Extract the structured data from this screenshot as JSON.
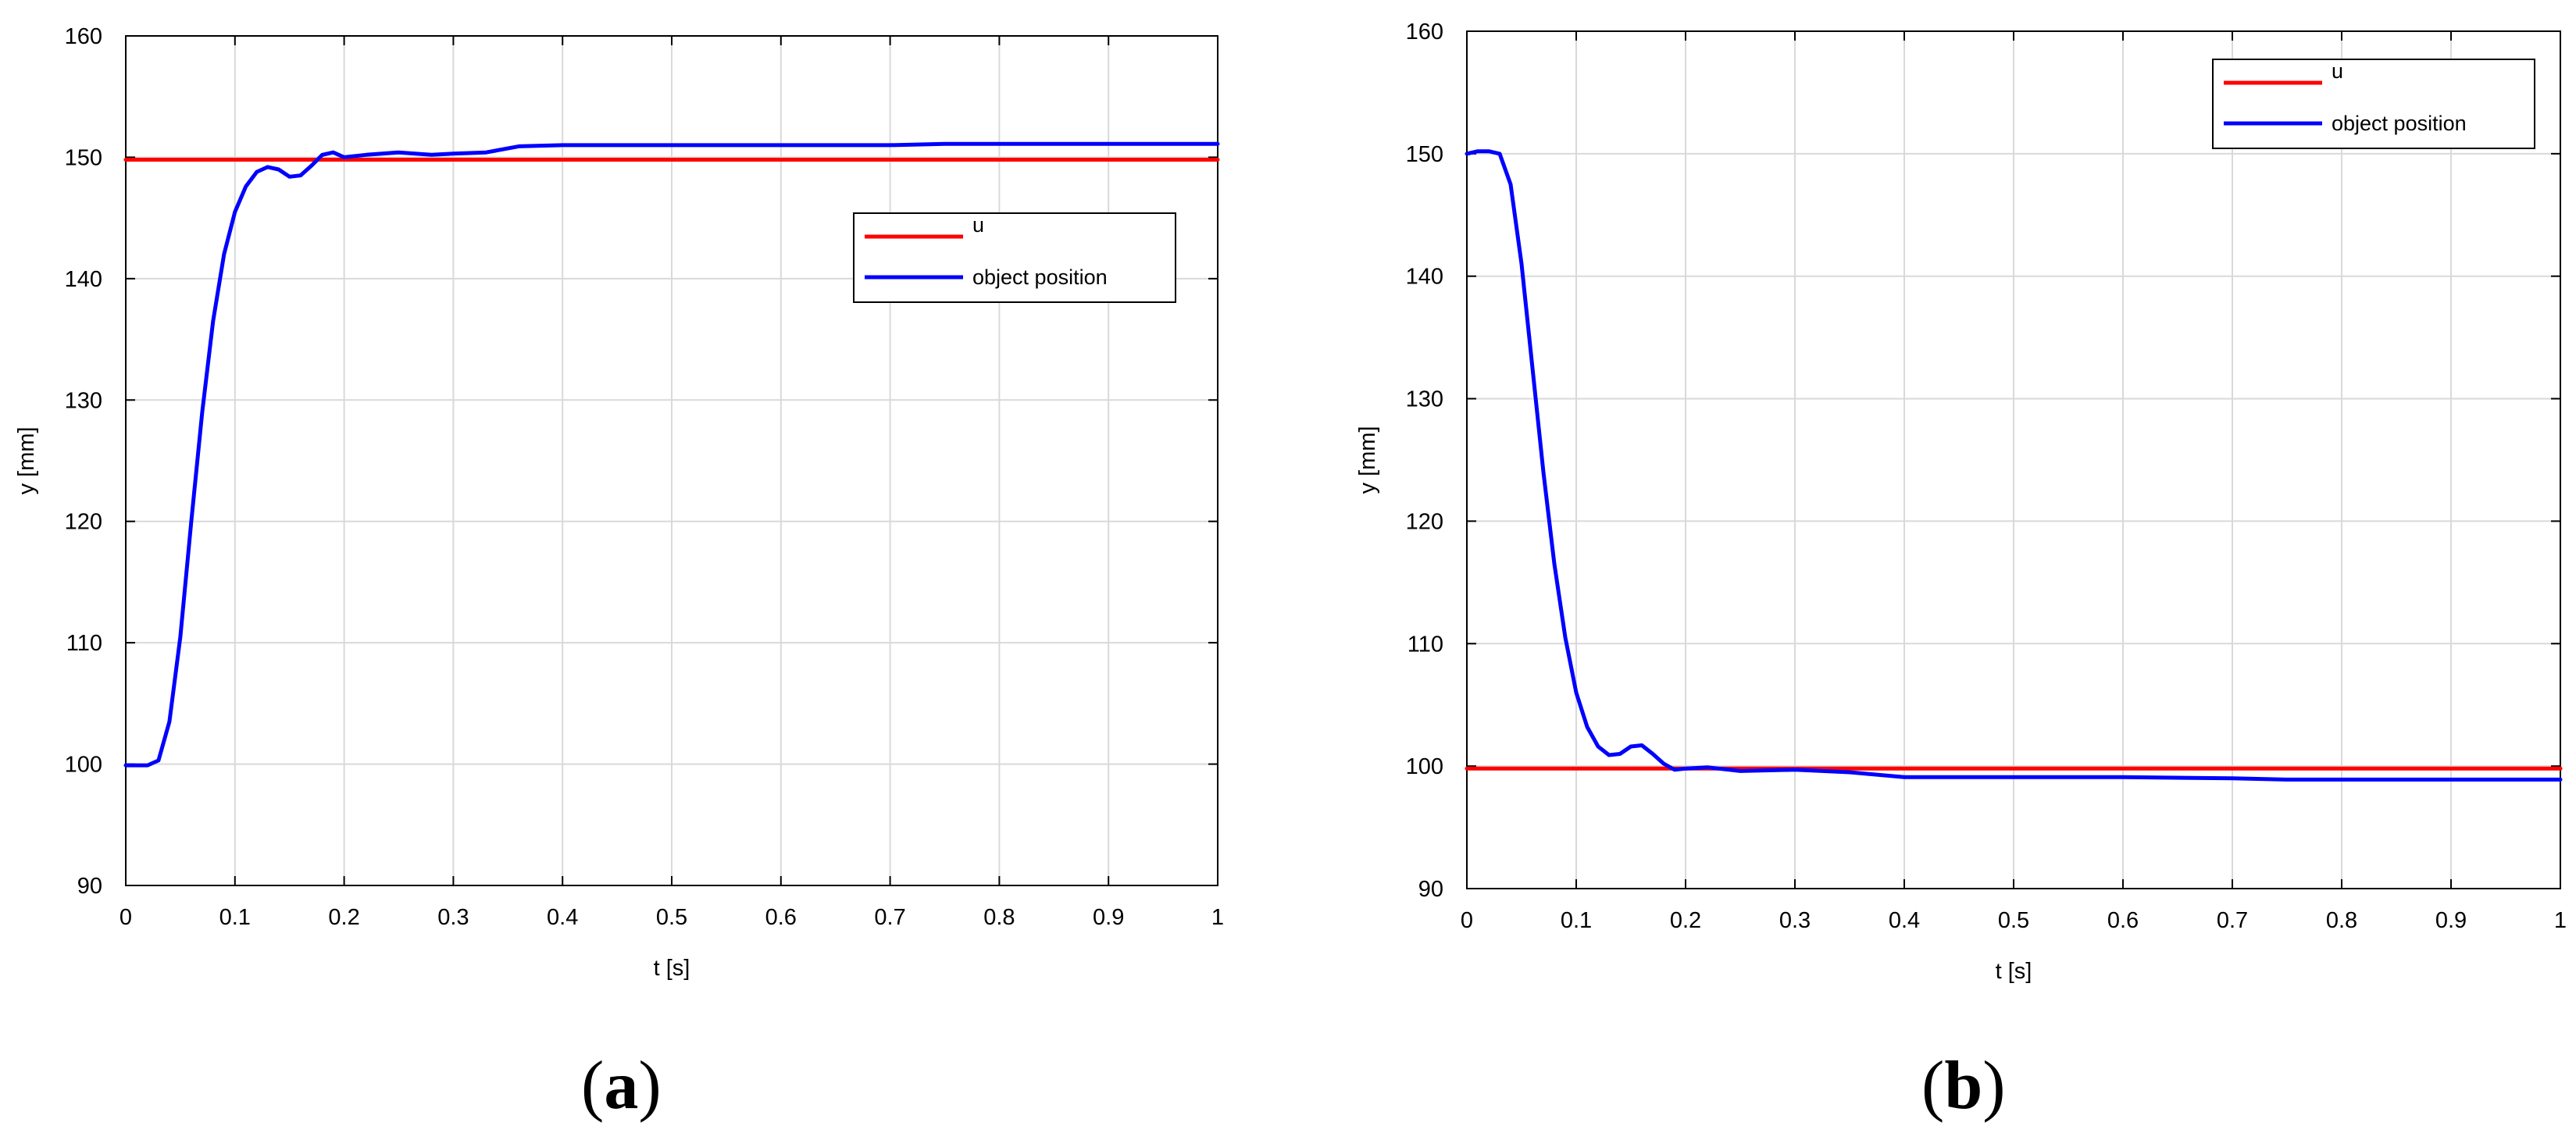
{
  "colors": {
    "setpoint": "#ff0000",
    "position": "#0000ff",
    "grid": "#d9d9d9",
    "axis": "#000000"
  },
  "chart_data": [
    {
      "type": "line",
      "panel_label": "a",
      "xlabel": "t [s]",
      "ylabel": "y [mm]",
      "xlim": [
        0,
        1
      ],
      "ylim": [
        90,
        160
      ],
      "xticks": [
        "0",
        "0.1",
        "0.2",
        "0.3",
        "0.4",
        "0.5",
        "0.6",
        "0.7",
        "0.8",
        "0.9",
        "1"
      ],
      "yticks": [
        "90",
        "100",
        "110",
        "120",
        "130",
        "140",
        "150",
        "160"
      ],
      "grid": true,
      "legend_position": "upper-right (inside)",
      "series": [
        {
          "name": "u",
          "color": "#ff0000",
          "x": [
            0,
            1
          ],
          "y": [
            149.8,
            149.8
          ]
        },
        {
          "name": "object position",
          "color": "#0000ff",
          "x": [
            0,
            0.02,
            0.03,
            0.04,
            0.05,
            0.06,
            0.07,
            0.08,
            0.09,
            0.1,
            0.11,
            0.12,
            0.13,
            0.14,
            0.15,
            0.16,
            0.17,
            0.18,
            0.19,
            0.2,
            0.22,
            0.25,
            0.28,
            0.3,
            0.33,
            0.36,
            0.4,
            0.5,
            0.6,
            0.7,
            0.75,
            0.8,
            0.9,
            1.0
          ],
          "y": [
            99.9,
            99.9,
            100.3,
            103.5,
            110.5,
            120.0,
            129.0,
            136.5,
            142.0,
            145.5,
            147.6,
            148.8,
            149.2,
            149.0,
            148.4,
            148.5,
            149.3,
            150.2,
            150.4,
            150.0,
            150.2,
            150.4,
            150.2,
            150.3,
            150.4,
            150.9,
            151.0,
            151.0,
            151.0,
            151.0,
            151.1,
            151.1,
            151.1,
            151.1
          ]
        }
      ]
    },
    {
      "type": "line",
      "panel_label": "b",
      "xlabel": "t [s]",
      "ylabel": "y [mm]",
      "xlim": [
        0,
        1
      ],
      "ylim": [
        90,
        160
      ],
      "xticks": [
        "0",
        "0.1",
        "0.2",
        "0.3",
        "0.4",
        "0.5",
        "0.6",
        "0.7",
        "0.8",
        "0.9",
        "1"
      ],
      "yticks": [
        "90",
        "100",
        "110",
        "120",
        "130",
        "140",
        "150",
        "160"
      ],
      "grid": true,
      "legend_position": "upper-right (inside)",
      "series": [
        {
          "name": "u",
          "color": "#ff0000",
          "x": [
            0,
            1
          ],
          "y": [
            99.8,
            99.8
          ]
        },
        {
          "name": "object position",
          "color": "#0000ff",
          "x": [
            0,
            0.01,
            0.02,
            0.03,
            0.04,
            0.05,
            0.06,
            0.07,
            0.08,
            0.09,
            0.1,
            0.11,
            0.12,
            0.13,
            0.14,
            0.15,
            0.16,
            0.17,
            0.18,
            0.19,
            0.2,
            0.22,
            0.25,
            0.3,
            0.35,
            0.4,
            0.5,
            0.6,
            0.7,
            0.75,
            0.8,
            0.9,
            1.0
          ],
          "y": [
            150.0,
            150.2,
            150.2,
            150.0,
            147.5,
            141.0,
            132.5,
            124.0,
            116.5,
            110.5,
            106.0,
            103.2,
            101.6,
            100.9,
            101.0,
            101.6,
            101.7,
            101.0,
            100.2,
            99.7,
            99.8,
            99.9,
            99.6,
            99.7,
            99.5,
            99.1,
            99.1,
            99.1,
            99.0,
            98.9,
            98.9,
            98.9,
            98.9
          ]
        }
      ]
    }
  ],
  "captions": {
    "open": "(",
    "close": ")",
    "a": "a",
    "b": "b"
  }
}
